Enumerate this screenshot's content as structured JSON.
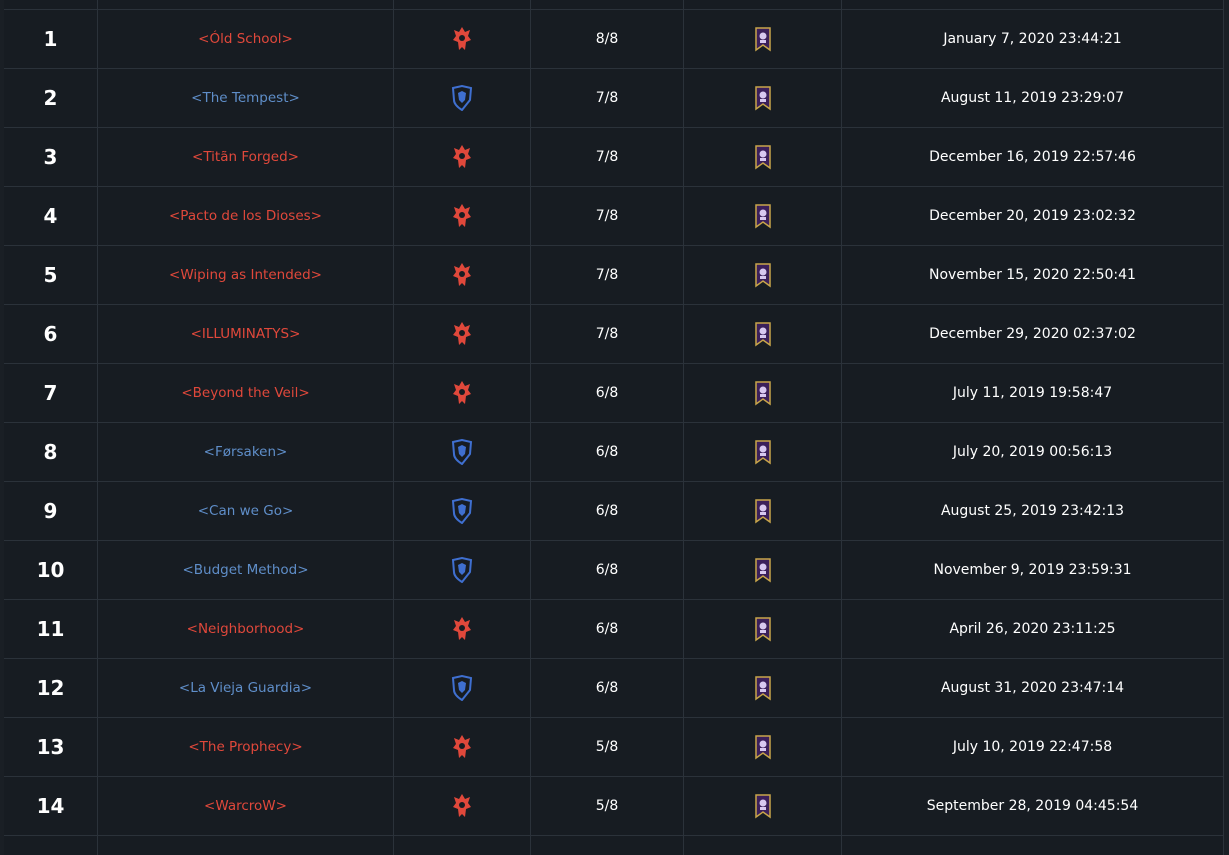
{
  "table": {
    "rows": [
      {
        "rank": "1",
        "guild": "<Óld School>",
        "color": "#e0483b",
        "progress": "8/8",
        "date": "January 7, 2020 23:44:21"
      },
      {
        "rank": "2",
        "guild": "<The Tempest>",
        "color": "#5f8ec9",
        "progress": "7/8",
        "date": "August 11, 2019 23:29:07"
      },
      {
        "rank": "3",
        "guild": "<Titãn Forged>",
        "color": "#e0483b",
        "progress": "7/8",
        "date": "December 16, 2019 22:57:46"
      },
      {
        "rank": "4",
        "guild": "<Pacto de los Dioses>",
        "color": "#e0483b",
        "progress": "7/8",
        "date": "December 20, 2019 23:02:32"
      },
      {
        "rank": "5",
        "guild": "<Wiping as Intended>",
        "color": "#e0483b",
        "progress": "7/8",
        "date": "November 15, 2020 22:50:41"
      },
      {
        "rank": "6",
        "guild": "<ILLUMINATYS>",
        "color": "#e0483b",
        "progress": "7/8",
        "date": "December 29, 2020 02:37:02"
      },
      {
        "rank": "7",
        "guild": "<Beyond the Veil>",
        "color": "#e0483b",
        "progress": "6/8",
        "date": "July 11, 2019 19:58:47"
      },
      {
        "rank": "8",
        "guild": "<Førsaken>",
        "color": "#5f8ec9",
        "progress": "6/8",
        "date": "July 20, 2019 00:56:13"
      },
      {
        "rank": "9",
        "guild": "<Can we Go>",
        "color": "#5f8ec9",
        "progress": "6/8",
        "date": "August 25, 2019 23:42:13"
      },
      {
        "rank": "10",
        "guild": "<Budget Method>",
        "color": "#5f8ec9",
        "progress": "6/8",
        "date": "November 9, 2019 23:59:31"
      },
      {
        "rank": "11",
        "guild": "<Neighborhood>",
        "color": "#e0483b",
        "progress": "6/8",
        "date": "April 26, 2020 23:11:25"
      },
      {
        "rank": "12",
        "guild": "<La Vieja Guardia>",
        "color": "#5f8ec9",
        "progress": "6/8",
        "date": "August 31, 2020 23:47:14"
      },
      {
        "rank": "13",
        "guild": "<The Prophecy>",
        "color": "#e0483b",
        "progress": "5/8",
        "date": "July 10, 2019 22:47:58"
      },
      {
        "rank": "14",
        "guild": "<WarcroW>",
        "color": "#e0483b",
        "progress": "5/8",
        "date": "September 28, 2019 04:45:54"
      }
    ]
  }
}
